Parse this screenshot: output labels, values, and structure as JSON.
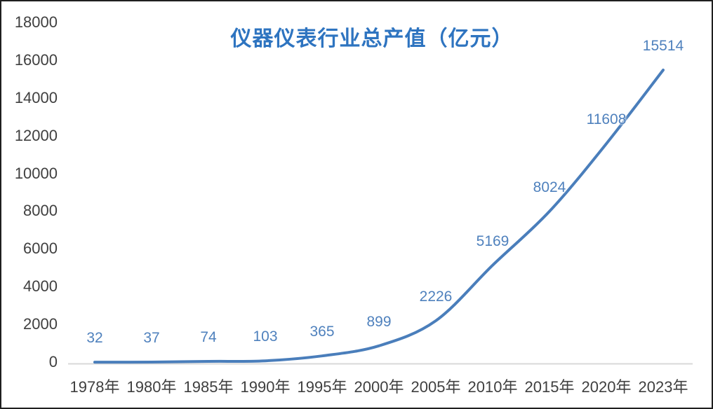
{
  "chart_data": {
    "type": "line",
    "title": "仪器仪表行业总产值（亿元）",
    "categories": [
      "1978年",
      "1980年",
      "1985年",
      "1990年",
      "1995年",
      "2000年",
      "2005年",
      "2010年",
      "2015年",
      "2020年",
      "2023年"
    ],
    "values": [
      32,
      37,
      74,
      103,
      365,
      899,
      2226,
      5169,
      8024,
      11608,
      15514
    ],
    "xlabel": "",
    "ylabel": "",
    "ylim": [
      0,
      18000
    ],
    "ytick_step": 2000,
    "grid": false,
    "legend": "none",
    "data_labels_position": "above",
    "series_name": "仪器仪表行业总产值"
  },
  "colors": {
    "line": "#4a7ebb",
    "data_label": "#4f81bd",
    "title": "#2e74c0",
    "axis_text": "#3f3f3f",
    "axis_line": "#d9d9d9",
    "frame_border": "#1f1f1f",
    "background": "#ffffff"
  }
}
